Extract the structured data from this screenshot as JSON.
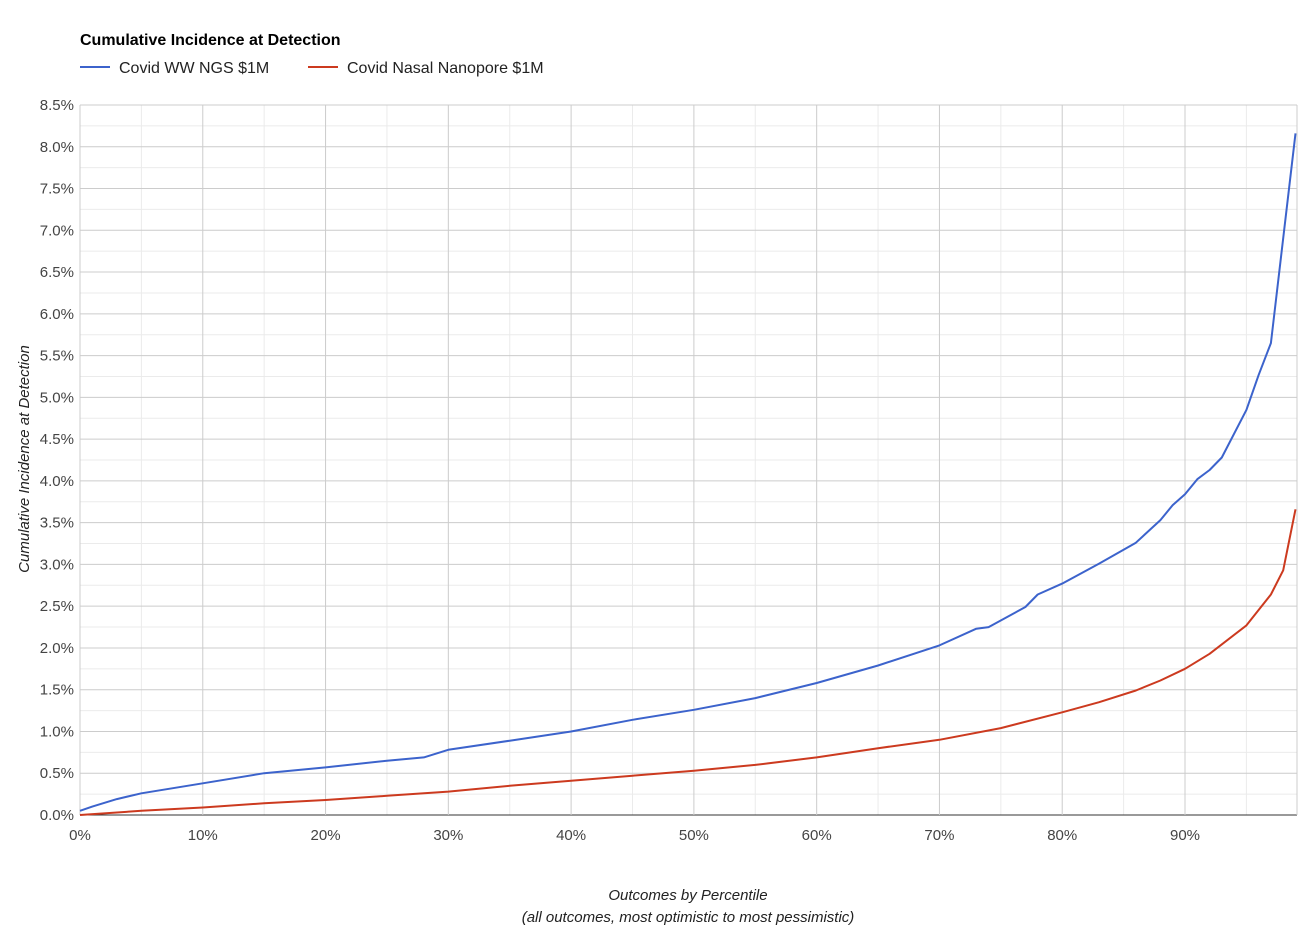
{
  "chart_data": {
    "type": "line",
    "title": "Cumulative Incidence at Detection",
    "xlabel": "Outcomes by Percentile",
    "xlabel_sub": "(all outcomes, most optimistic to most pessimistic)",
    "ylabel": "Cumulative Incidence at Detection",
    "xlim": [
      0,
      99
    ],
    "ylim": [
      0,
      8.5
    ],
    "x_ticks": [
      "0%",
      "10%",
      "20%",
      "30%",
      "40%",
      "50%",
      "60%",
      "70%",
      "80%",
      "90%"
    ],
    "y_ticks": [
      "0.0%",
      "0.5%",
      "1.0%",
      "1.5%",
      "2.0%",
      "2.5%",
      "3.0%",
      "3.5%",
      "4.0%",
      "4.5%",
      "5.0%",
      "5.5%",
      "6.0%",
      "6.5%",
      "7.0%",
      "7.5%",
      "8.0%",
      "8.5%"
    ],
    "grid": true,
    "legend_position": "top-left",
    "series": [
      {
        "name": "Covid WW NGS $1M",
        "color": "#3c63cc",
        "x": [
          0,
          1,
          3,
          5,
          10,
          15,
          20,
          25,
          28,
          30,
          35,
          40,
          45,
          50,
          55,
          60,
          65,
          70,
          73,
          74,
          77,
          78,
          80,
          83,
          86,
          88,
          89,
          90,
          91,
          92,
          93,
          95,
          96,
          97,
          99
        ],
        "y": [
          0.05,
          0.1,
          0.19,
          0.26,
          0.38,
          0.5,
          0.57,
          0.65,
          0.69,
          0.78,
          0.89,
          1.0,
          1.14,
          1.26,
          1.4,
          1.58,
          1.79,
          2.03,
          2.23,
          2.25,
          2.49,
          2.64,
          2.77,
          3.01,
          3.26,
          3.53,
          3.71,
          3.84,
          4.02,
          4.13,
          4.28,
          4.85,
          5.27,
          5.65,
          8.16
        ]
      },
      {
        "name": "Covid Nasal Nanopore $1M",
        "color": "#cc3a1f",
        "x": [
          0,
          5,
          10,
          15,
          20,
          25,
          30,
          35,
          40,
          45,
          50,
          55,
          60,
          65,
          70,
          75,
          80,
          83,
          86,
          88,
          90,
          92,
          95,
          97,
          98,
          99
        ],
        "y": [
          0.0,
          0.05,
          0.09,
          0.14,
          0.18,
          0.23,
          0.28,
          0.35,
          0.41,
          0.47,
          0.53,
          0.6,
          0.69,
          0.8,
          0.9,
          1.04,
          1.23,
          1.35,
          1.49,
          1.61,
          1.75,
          1.93,
          2.27,
          2.64,
          2.93,
          3.66
        ]
      }
    ]
  }
}
